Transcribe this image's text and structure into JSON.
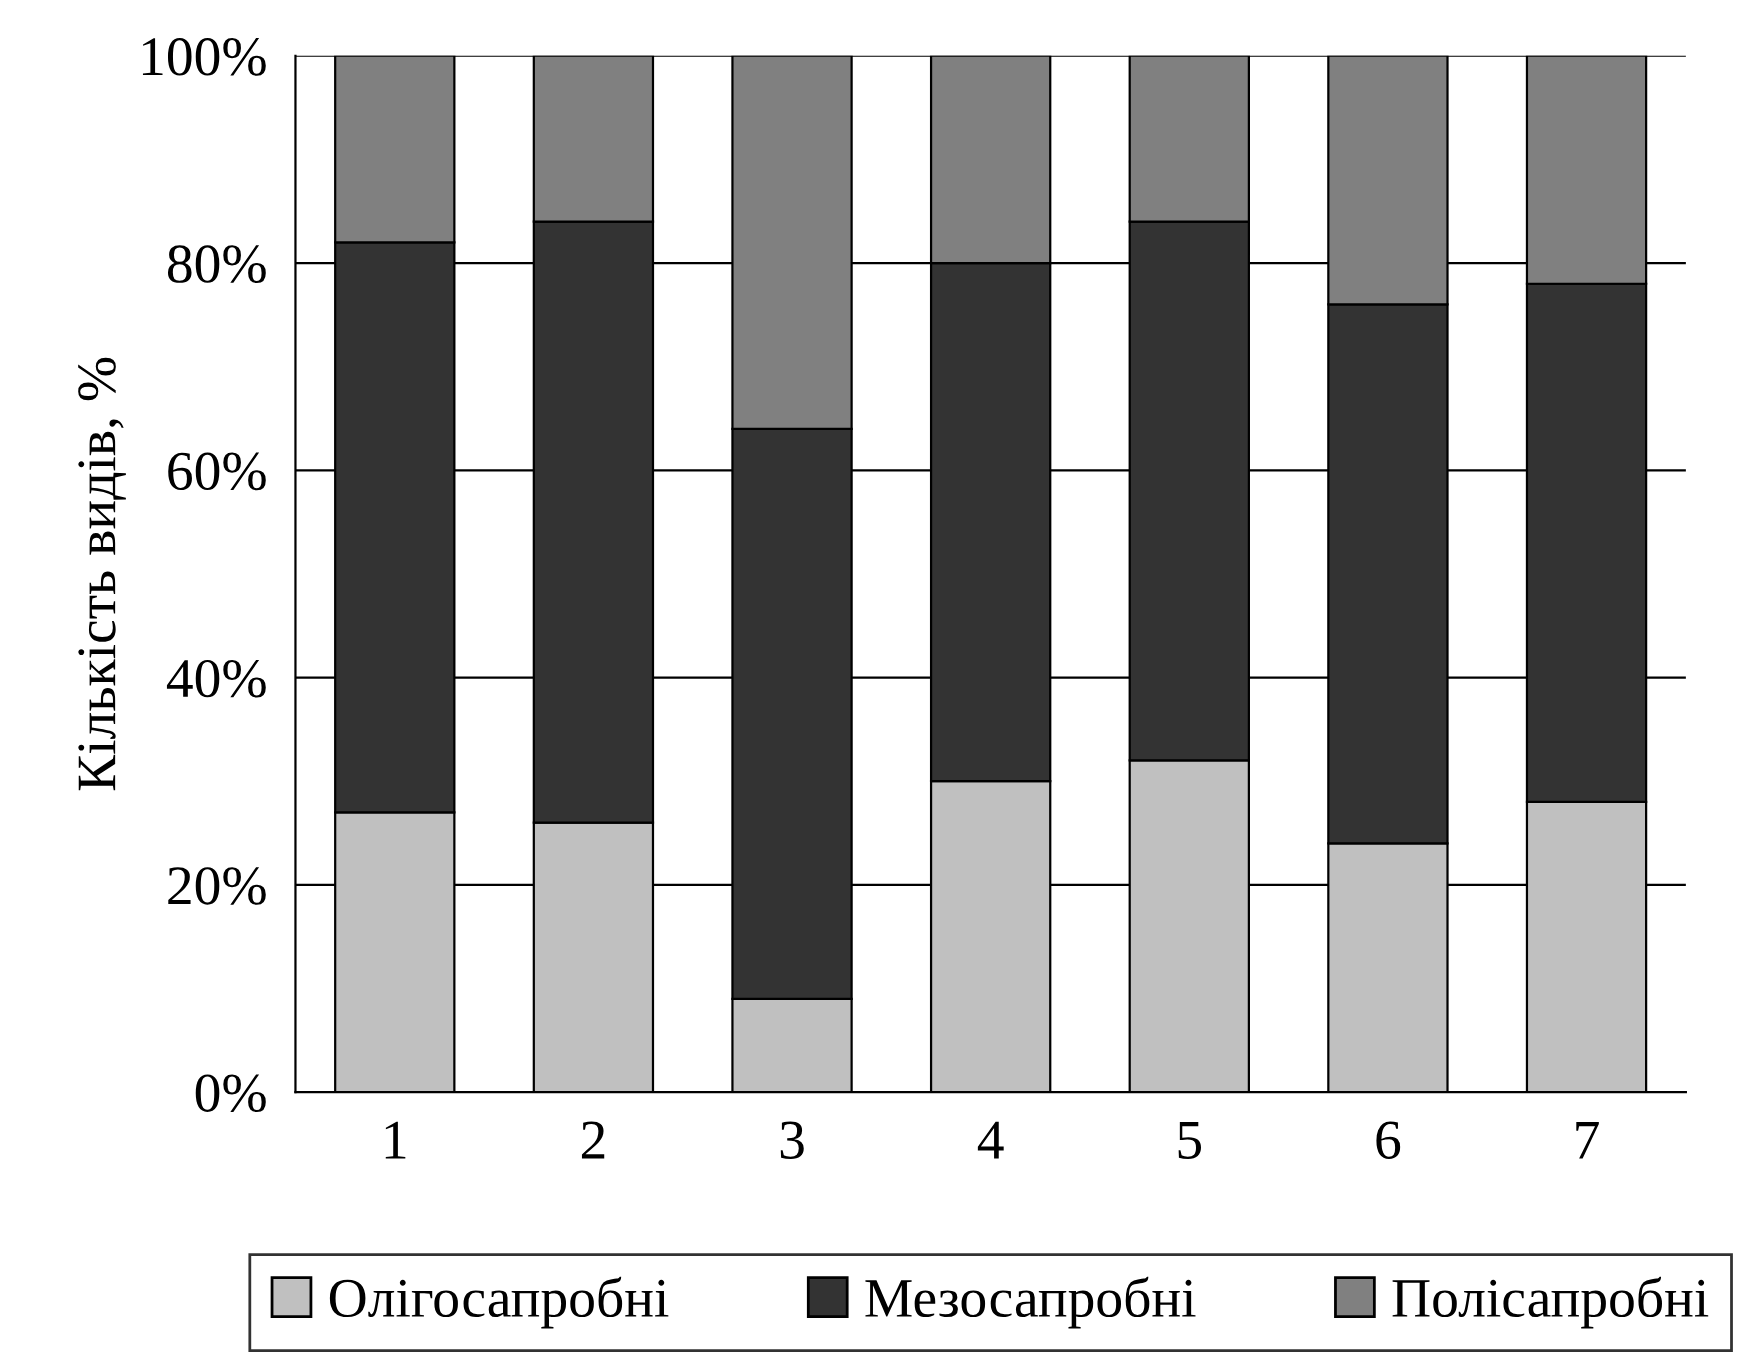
{
  "chart_data": {
    "type": "bar",
    "stacked": true,
    "ylabel": "Кількість видів, %",
    "categories": [
      "1",
      "2",
      "3",
      "4",
      "5",
      "6",
      "7"
    ],
    "series": [
      {
        "name": "Олігосапробні",
        "color": "#c0c0c0",
        "values": [
          27,
          26,
          9,
          30,
          32,
          24,
          28
        ]
      },
      {
        "name": "Мезосапробні",
        "color": "#333333",
        "values": [
          55,
          58,
          55,
          50,
          52,
          52,
          50
        ]
      },
      {
        "name": "Полісапробні",
        "color": "#808080",
        "values": [
          18,
          16,
          36,
          20,
          16,
          24,
          22
        ]
      }
    ],
    "ylim": [
      0,
      100
    ],
    "yticks": [
      {
        "value": 0,
        "label": "0%"
      },
      {
        "value": 20,
        "label": "20%"
      },
      {
        "value": 40,
        "label": "40%"
      },
      {
        "value": 60,
        "label": "60%"
      },
      {
        "value": 80,
        "label": "80%"
      },
      {
        "value": 100,
        "label": "100%"
      }
    ],
    "grid": "y",
    "legend": "bottom"
  }
}
